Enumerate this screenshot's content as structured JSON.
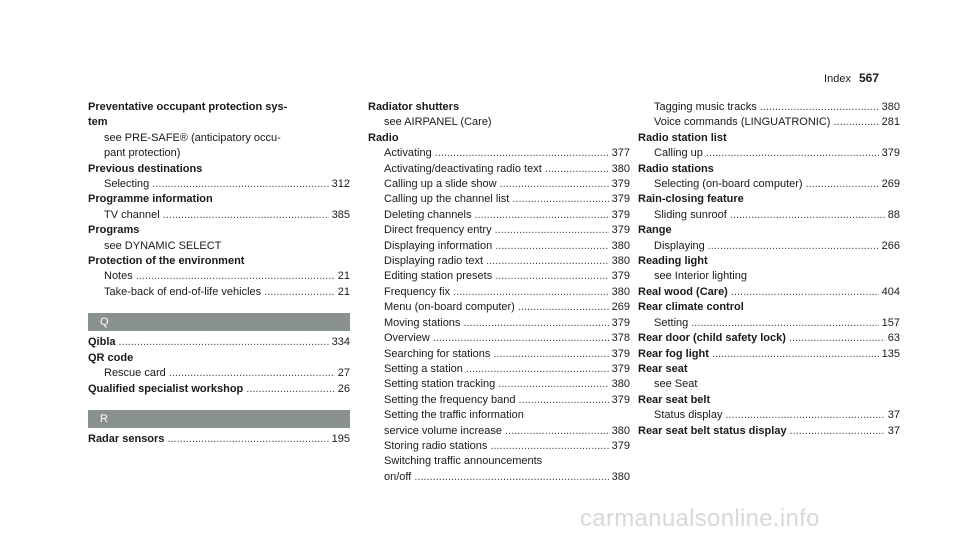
{
  "header": {
    "label": "Index",
    "page": "567"
  },
  "col1": [
    {
      "text": "Preventative occupant protection sys-",
      "bold": true
    },
    {
      "text": "tem",
      "bold": true
    },
    {
      "text": "see PRE-SAFE® (anticipatory occu-",
      "indent": true
    },
    {
      "text": "pant protection)",
      "indent": true
    },
    {
      "text": "Previous destinations",
      "bold": true
    },
    {
      "text": "Selecting",
      "page": "312",
      "indent": true
    },
    {
      "text": "Programme information",
      "bold": true
    },
    {
      "text": "TV channel",
      "page": "385",
      "indent": true
    },
    {
      "text": "Programs",
      "bold": true
    },
    {
      "text": "see DYNAMIC SELECT",
      "indent": true
    },
    {
      "text": "Protection of the environment",
      "bold": true
    },
    {
      "text": "Notes",
      "page": "21",
      "indent": true
    },
    {
      "text": "Take-back of end-of-life vehicles",
      "page": "21",
      "indent": true
    },
    {
      "gap": true
    },
    {
      "section": "Q"
    },
    {
      "text": "Qibla",
      "page": "334",
      "bold": true
    },
    {
      "text": "QR code",
      "bold": true
    },
    {
      "text": "Rescue card",
      "page": "27",
      "indent": true
    },
    {
      "text": "Qualified specialist workshop",
      "page": "26",
      "bold": true
    },
    {
      "gap": true
    },
    {
      "section": "R"
    },
    {
      "text": "Radar sensors",
      "page": "195",
      "bold": true
    }
  ],
  "col2": [
    {
      "text": "Radiator shutters",
      "bold": true
    },
    {
      "text": "see AIRPANEL (Care)",
      "indent": true
    },
    {
      "text": "Radio",
      "bold": true
    },
    {
      "text": "Activating",
      "page": "377",
      "indent": true
    },
    {
      "text": "Activating/deactivating radio text",
      "page": "380",
      "indent": true
    },
    {
      "text": "Calling up a slide show",
      "page": "379",
      "indent": true
    },
    {
      "text": "Calling up the channel list",
      "page": "379",
      "indent": true
    },
    {
      "text": "Deleting channels",
      "page": "379",
      "indent": true
    },
    {
      "text": "Direct frequency entry",
      "page": "379",
      "indent": true
    },
    {
      "text": "Displaying information",
      "page": "380",
      "indent": true
    },
    {
      "text": "Displaying radio text",
      "page": "380",
      "indent": true
    },
    {
      "text": "Editing station presets",
      "page": "379",
      "indent": true
    },
    {
      "text": "Frequency fix",
      "page": "380",
      "indent": true
    },
    {
      "text": "Menu (on-board computer)",
      "page": "269",
      "indent": true
    },
    {
      "text": "Moving stations",
      "page": "379",
      "indent": true
    },
    {
      "text": "Overview",
      "page": "378",
      "indent": true
    },
    {
      "text": "Searching for stations",
      "page": "379",
      "indent": true
    },
    {
      "text": "Setting a station",
      "page": "379",
      "indent": true
    },
    {
      "text": "Setting station tracking",
      "page": "380",
      "indent": true
    },
    {
      "text": "Setting the frequency band",
      "page": "379",
      "indent": true
    },
    {
      "text": "Setting the traffic information",
      "indent": true
    },
    {
      "text": "service volume increase",
      "page": "380",
      "indent": true
    },
    {
      "text": "Storing radio stations",
      "page": "379",
      "indent": true
    },
    {
      "text": "Switching traffic announcements",
      "indent": true
    },
    {
      "text": "on/off",
      "page": "380",
      "indent": true
    }
  ],
  "col3": [
    {
      "text": "Tagging music tracks",
      "page": "380",
      "indent": true
    },
    {
      "text": "Voice commands (LINGUATRONIC)",
      "page": "281",
      "indent": true
    },
    {
      "text": "Radio station list",
      "bold": true
    },
    {
      "text": "Calling up",
      "page": "379",
      "indent": true
    },
    {
      "text": "Radio stations",
      "bold": true
    },
    {
      "text": "Selecting (on-board computer)",
      "page": "269",
      "indent": true
    },
    {
      "text": "Rain-closing feature",
      "bold": true
    },
    {
      "text": "Sliding sunroof",
      "page": "88",
      "indent": true
    },
    {
      "text": "Range",
      "bold": true
    },
    {
      "text": "Displaying",
      "page": "266",
      "indent": true
    },
    {
      "text": "Reading light",
      "bold": true
    },
    {
      "text": "see Interior lighting",
      "indent": true
    },
    {
      "text": "Real wood (Care)",
      "page": "404",
      "bold": true
    },
    {
      "text": "Rear climate control",
      "bold": true
    },
    {
      "text": "Setting",
      "page": "157",
      "indent": true
    },
    {
      "text": "Rear door (child safety lock)",
      "page": "63",
      "bold": true
    },
    {
      "text": "Rear fog light",
      "page": "135",
      "bold": true
    },
    {
      "text": "Rear seat",
      "bold": true
    },
    {
      "text": "see Seat",
      "indent": true
    },
    {
      "text": "Rear seat belt",
      "bold": true
    },
    {
      "text": "Status display",
      "page": "37",
      "indent": true
    },
    {
      "text": "Rear seat belt status display",
      "page": "37",
      "bold": true
    }
  ],
  "footer": "carmanualsonline.info"
}
